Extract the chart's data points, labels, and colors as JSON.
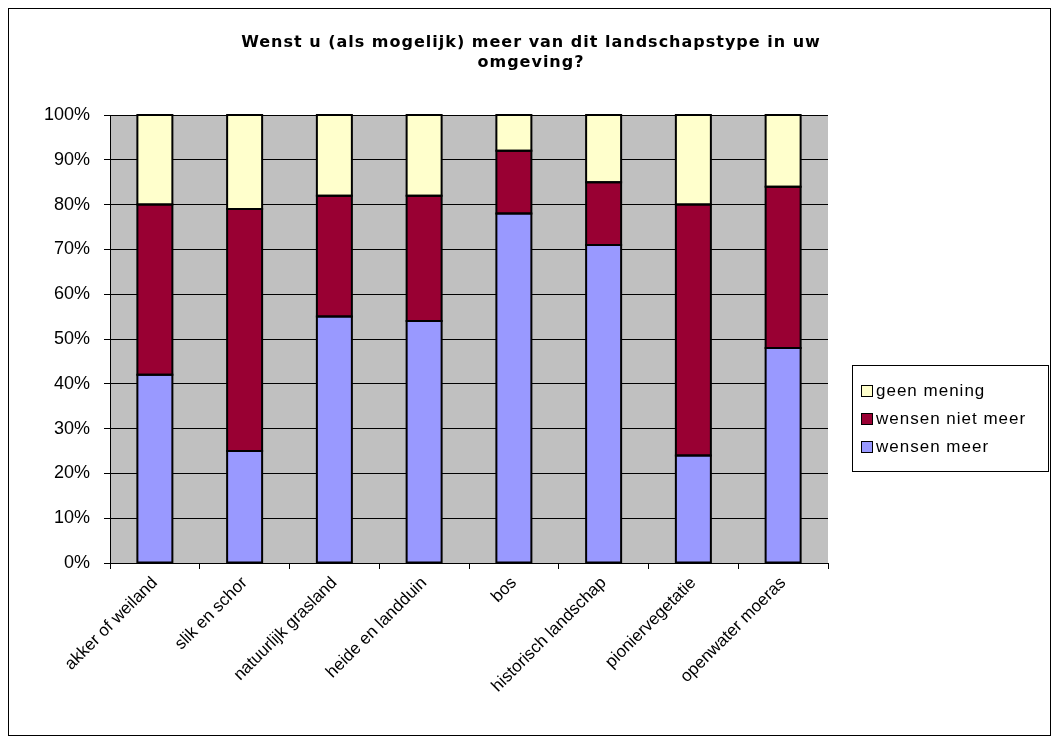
{
  "chart_data": {
    "type": "bar",
    "title": "Wenst u (als mogelijk) meer van dit landschapstype in uw omgeving?",
    "categories": [
      "akker of weiland",
      "slik en schor",
      "natuurlijk grasland",
      "heide en landduin",
      "bos",
      "historisch landschap",
      "pioniervegetatie",
      "openwater moeras"
    ],
    "stacked": true,
    "series": [
      {
        "name": "wensen meer",
        "color": "#9999ff",
        "values": [
          42,
          25,
          55,
          54,
          78,
          71,
          24,
          48
        ]
      },
      {
        "name": "wensen niet meer",
        "color": "#990033",
        "values": [
          38,
          54,
          27,
          28,
          14,
          14,
          56,
          36
        ]
      },
      {
        "name": "geen mening",
        "color": "#ffffcc",
        "values": [
          20,
          21,
          18,
          18,
          8,
          15,
          20,
          16
        ]
      }
    ],
    "ylim": [
      0,
      100
    ],
    "yticks": [
      {
        "value": 0,
        "label": "0%"
      },
      {
        "value": 10,
        "label": "10%"
      },
      {
        "value": 20,
        "label": "20%"
      },
      {
        "value": 30,
        "label": "30%"
      },
      {
        "value": 40,
        "label": "40%"
      },
      {
        "value": 50,
        "label": "50%"
      },
      {
        "value": 60,
        "label": "60%"
      },
      {
        "value": 70,
        "label": "70%"
      },
      {
        "value": 80,
        "label": "80%"
      },
      {
        "value": 90,
        "label": "90%"
      },
      {
        "value": 100,
        "label": "100%"
      }
    ],
    "grid": "y",
    "legend": "right"
  }
}
